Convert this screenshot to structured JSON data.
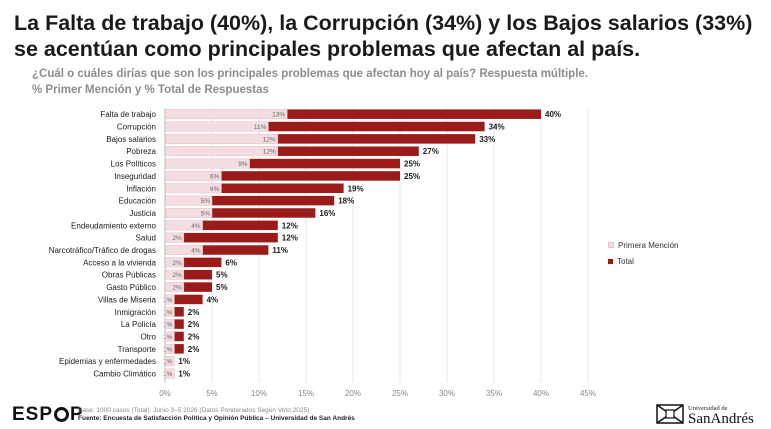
{
  "header": {
    "title_line1": "La Falta de trabajo (40%), la Corrupción (34%) y los Bajos salarios (33%)",
    "title_line2": "se acentúan como principales problemas que afectan al país.",
    "question": "¿Cuál o cuáles dirías que son los principales problemas que afectan hoy al país? Respuesta múltiple.",
    "measures": "% Primer Mención y % Total de Respuestas"
  },
  "colors": {
    "total": "#9b1b1b",
    "first_mention": "#f4dde1",
    "first_mention_border": "#e8c3c9",
    "grid": "#e6e6e6"
  },
  "chart_data": {
    "type": "bar",
    "orientation": "horizontal",
    "categories": [
      "Falta de trabajo",
      "Corrupción",
      "Bajos salarios",
      "Pobreza",
      "Los Políticos",
      "Inseguridad",
      "Inflación",
      "Educación",
      "Justicia",
      "Endeudamiento externo",
      "Salud",
      "Narcotráfico/Tráfico de drogas",
      "Acceso a la vivienda",
      "Obras Públicas",
      "Gasto Público",
      "Villas de Miseria",
      "Inmigración",
      "La Policía",
      "Otro",
      "Transporte",
      "Epidemias y enfermedades",
      "Cambio Climático"
    ],
    "series": [
      {
        "name": "Primera Mención",
        "values": [
          13,
          11,
          12,
          12,
          9,
          6,
          6,
          5,
          5,
          4,
          2,
          4,
          2,
          2,
          2,
          1,
          1,
          1,
          1,
          1,
          1,
          1
        ],
        "labels": [
          "13%",
          "11%",
          "12%",
          "12%",
          "9%",
          "6%",
          "6%",
          "5%",
          "5%",
          "4%",
          "2%",
          "4%",
          "2%",
          "2%",
          "2%",
          "1%",
          "1%",
          "1%",
          "1%",
          "1%",
          "1%",
          "1%"
        ]
      },
      {
        "name": "Total",
        "values": [
          40,
          34,
          33,
          27,
          25,
          25,
          19,
          18,
          16,
          12,
          12,
          11,
          6,
          5,
          5,
          4,
          2,
          2,
          2,
          2,
          1,
          1
        ],
        "labels": [
          "40%",
          "34%",
          "33%",
          "27%",
          "25%",
          "25%",
          "19%",
          "18%",
          "16%",
          "12%",
          "12%",
          "11%",
          "6%",
          "5%",
          "5%",
          "4%",
          "2%",
          "2%",
          "2%",
          "2%",
          "1%",
          "1%"
        ]
      }
    ],
    "xlim": [
      0,
      45
    ],
    "xticks": [
      "0%",
      "5%",
      "10%",
      "15%",
      "20%",
      "25%",
      "30%",
      "35%",
      "40%",
      "45%"
    ],
    "grid": true,
    "legend": "right"
  },
  "legend": {
    "first_label": "Primera Mención",
    "total_label": "Total"
  },
  "footer": {
    "logo_left": "ESP",
    "logo_right": "P",
    "note": "Base: 1000 casos (Total). Junio 3–5 2026 (Datos Ponderados Según Voto 2025)",
    "source": "Fuente: Encuesta de Satisfacción Política y Opinión Pública – Universidad de San Andrés",
    "university_small": "Universidad de",
    "university_big": "SanAndrés"
  }
}
